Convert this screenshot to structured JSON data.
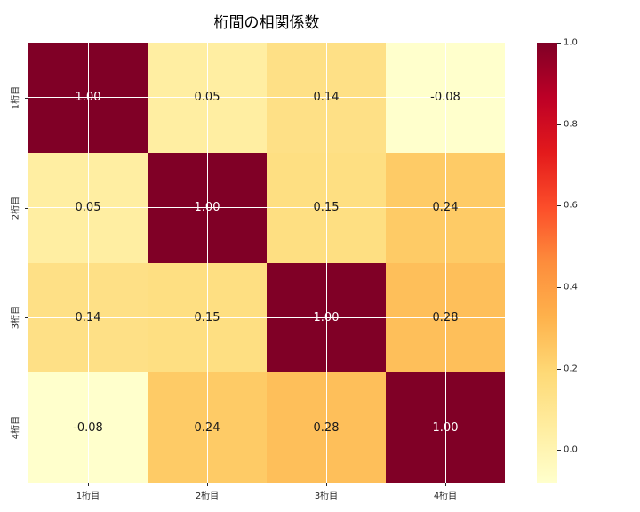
{
  "title": "桁間の相関係数",
  "chart_data": {
    "type": "heatmap",
    "title": "桁間の相関係数",
    "categories": [
      "1桁目",
      "2桁目",
      "3桁目",
      "4桁目"
    ],
    "x_categories": [
      "1桁目",
      "2桁目",
      "3桁目",
      "4桁目"
    ],
    "y_categories": [
      "1桁目",
      "2桁目",
      "3桁目",
      "4桁目"
    ],
    "matrix": [
      [
        1.0,
        0.05,
        0.14,
        -0.08
      ],
      [
        0.05,
        1.0,
        0.15,
        0.24
      ],
      [
        0.14,
        0.15,
        1.0,
        0.28
      ],
      [
        -0.08,
        0.24,
        0.28,
        1.0
      ]
    ],
    "value_format_decimals": 2,
    "vmin": -0.08,
    "vmax": 1.0,
    "grid": true,
    "gridline_color": "#ffffff",
    "annotation_color_dark": "#1a1a1a",
    "annotation_color_light": "#ffffff",
    "colormap": {
      "name": "YlOrRd",
      "stops": [
        "#ffffcc",
        "#ffeda0",
        "#fed976",
        "#feb24c",
        "#fd8d3c",
        "#fc4e2a",
        "#e31a1c",
        "#bd0026",
        "#800026"
      ]
    },
    "colorbar": {
      "position": "right",
      "tick_values": [
        1.0,
        0.8,
        0.6,
        0.4,
        0.2,
        0.0
      ],
      "tick_labels": [
        "1.0",
        "0.8",
        "0.6",
        "0.4",
        "0.2",
        "0.0"
      ],
      "tick_format_decimals": 1
    }
  }
}
